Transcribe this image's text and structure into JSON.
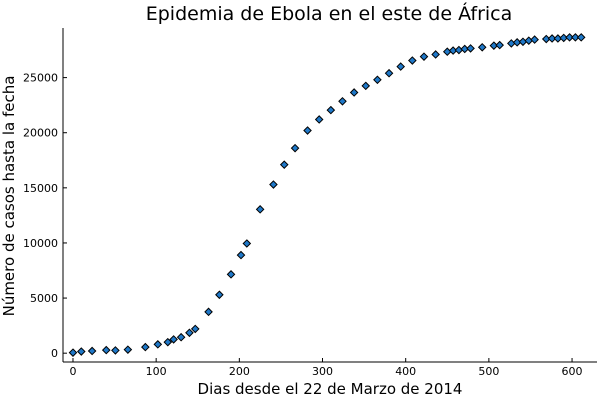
{
  "chart_data": {
    "type": "scatter",
    "title": "Epidemia de Ebola en el este de África",
    "xlabel": "Dias desde el 22 de Marzo de 2014",
    "ylabel": "Número de casos hasta la fecha",
    "xlim": [
      -12,
      630
    ],
    "ylim": [
      -800,
      29500
    ],
    "xticks": [
      0,
      100,
      200,
      300,
      400,
      500,
      600
    ],
    "yticks": [
      0,
      5000,
      10000,
      15000,
      20000,
      25000
    ],
    "grid": false,
    "legend": "none",
    "marker": "diamond",
    "color": "#1f78c8",
    "series": [
      {
        "x": [
          0,
          10,
          23,
          40,
          51,
          66,
          87,
          102,
          114,
          121,
          130,
          140,
          147,
          163,
          176,
          190,
          202,
          209,
          225,
          241,
          254,
          267,
          282,
          296,
          310,
          324,
          338,
          352,
          366,
          380,
          394,
          408,
          422,
          436,
          450,
          457,
          464,
          471,
          478,
          492,
          506,
          513,
          527,
          534,
          541,
          548,
          555,
          569,
          576,
          583,
          590,
          597,
          604,
          611
        ],
        "y": [
          50,
          150,
          200,
          280,
          250,
          320,
          550,
          800,
          1000,
          1250,
          1450,
          1850,
          2200,
          3750,
          5300,
          7150,
          8900,
          9950,
          13050,
          15300,
          17100,
          18600,
          20200,
          21200,
          22050,
          22850,
          23650,
          24250,
          24800,
          25400,
          26000,
          26550,
          26900,
          27100,
          27350,
          27450,
          27500,
          27600,
          27650,
          27750,
          27900,
          27950,
          28100,
          28200,
          28250,
          28350,
          28450,
          28500,
          28550,
          28550,
          28600,
          28650,
          28650,
          28650
        ]
      }
    ]
  }
}
